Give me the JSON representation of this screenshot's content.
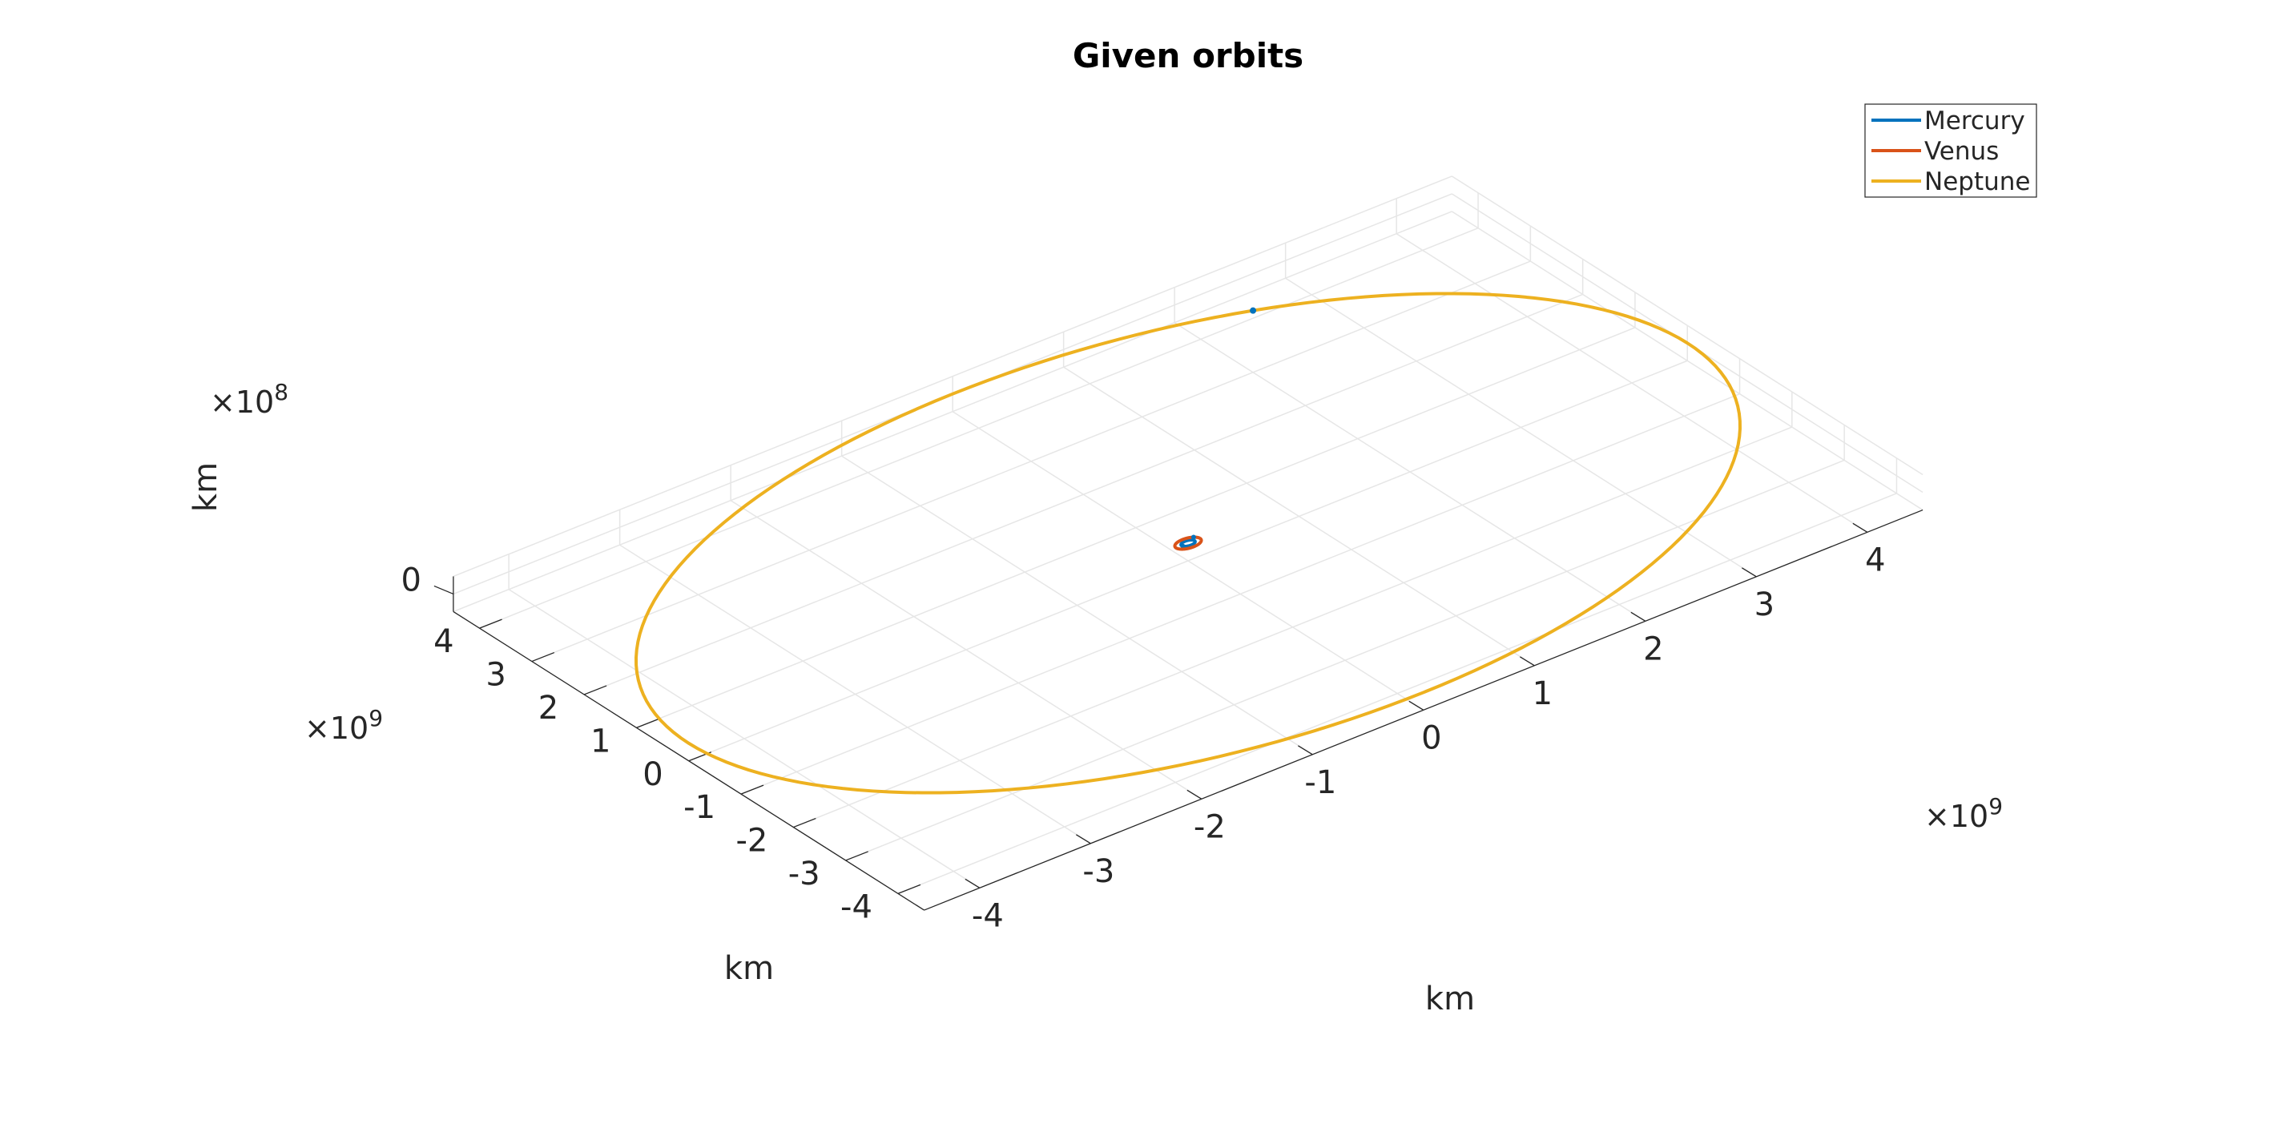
{
  "chart_data": {
    "type": "line",
    "title": "Given orbits",
    "view": "3d",
    "grid": true,
    "legend_position": "top-right",
    "x_axis": {
      "label": "km",
      "ticks": [
        -4,
        -3,
        -2,
        -1,
        0,
        1,
        2,
        3,
        4
      ],
      "tick_labels": [
        "-4",
        "-3",
        "-2",
        "-1",
        "0",
        "1",
        "2",
        "3",
        "4"
      ],
      "exponent_base": "×10",
      "exponent": "9",
      "lim": [
        -4.5,
        4.5
      ]
    },
    "y_axis": {
      "label": "km",
      "ticks": [
        -4,
        -3,
        -2,
        -1,
        0,
        1,
        2,
        3,
        4
      ],
      "tick_labels": [
        "-4",
        "-3",
        "-2",
        "-1",
        "0",
        "1",
        "2",
        "3",
        "4"
      ],
      "exponent_base": "×10",
      "exponent": "9",
      "lim": [
        -4.5,
        4.5
      ]
    },
    "z_axis": {
      "label": "km",
      "ticks": [
        0
      ],
      "tick_labels": [
        "0"
      ],
      "exponent_base": "×10",
      "exponent": "8",
      "lim": [
        -1,
        1
      ]
    },
    "series": [
      {
        "name": "Mercury",
        "color": "#0072BD",
        "orbit_radius": 0.058,
        "body_angle_deg": 200
      },
      {
        "name": "Venus",
        "color": "#D95319",
        "orbit_radius": 0.108,
        "body_angle_deg": 40
      },
      {
        "name": "Neptune",
        "color": "#EDB120",
        "orbit_radius": 4.5,
        "body_angle_deg": 58
      }
    ]
  }
}
